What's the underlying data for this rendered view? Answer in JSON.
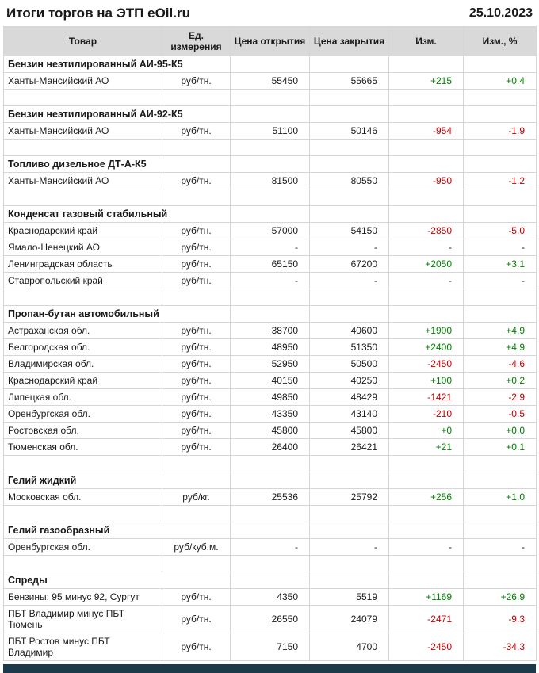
{
  "header": {
    "title": "Итоги торгов на ЭТП eOil.ru",
    "date": "25.10.2023"
  },
  "table": {
    "columns": [
      "Товар",
      "Ед. измерения",
      "Цена открытия",
      "Цена закрытия",
      "Изм.",
      "Изм., %"
    ],
    "sections": [
      {
        "name": "Бензин неэтилированный АИ-95-К5",
        "rows": [
          {
            "region": "Ханты-Мансийский АО",
            "unit": "руб/тн.",
            "open": "55450",
            "close": "55665",
            "change": "+215",
            "change_pct": "+0.4",
            "trend": "up"
          }
        ]
      },
      {
        "name": "Бензин неэтилированный АИ-92-К5",
        "rows": [
          {
            "region": "Ханты-Мансийский АО",
            "unit": "руб/тн.",
            "open": "51100",
            "close": "50146",
            "change": "-954",
            "change_pct": "-1.9",
            "trend": "down"
          }
        ]
      },
      {
        "name": "Топливо дизельное ДТ-А-К5",
        "rows": [
          {
            "region": "Ханты-Мансийский АО",
            "unit": "руб/тн.",
            "open": "81500",
            "close": "80550",
            "change": "-950",
            "change_pct": "-1.2",
            "trend": "down"
          }
        ]
      },
      {
        "name": "Конденсат газовый стабильный",
        "rows": [
          {
            "region": "Краснодарский край",
            "unit": "руб/тн.",
            "open": "57000",
            "close": "54150",
            "change": "-2850",
            "change_pct": "-5.0",
            "trend": "down"
          },
          {
            "region": "Ямало-Ненецкий АО",
            "unit": "руб/тн.",
            "open": "-",
            "close": "-",
            "change": "-",
            "change_pct": "-",
            "trend": ""
          },
          {
            "region": "Ленинградская область",
            "unit": "руб/тн.",
            "open": "65150",
            "close": "67200",
            "change": "+2050",
            "change_pct": "+3.1",
            "trend": "up"
          },
          {
            "region": "Ставропольский край",
            "unit": "руб/тн.",
            "open": "-",
            "close": "-",
            "change": "-",
            "change_pct": "-",
            "trend": ""
          }
        ]
      },
      {
        "name": "Пропан-бутан автомобильный",
        "rows": [
          {
            "region": "Астраханская обл.",
            "unit": "руб/тн.",
            "open": "38700",
            "close": "40600",
            "change": "+1900",
            "change_pct": "+4.9",
            "trend": "up"
          },
          {
            "region": "Белгородская обл.",
            "unit": "руб/тн.",
            "open": "48950",
            "close": "51350",
            "change": "+2400",
            "change_pct": "+4.9",
            "trend": "up"
          },
          {
            "region": "Владимирская обл.",
            "unit": "руб/тн.",
            "open": "52950",
            "close": "50500",
            "change": "-2450",
            "change_pct": "-4.6",
            "trend": "down"
          },
          {
            "region": "Краснодарский край",
            "unit": "руб/тн.",
            "open": "40150",
            "close": "40250",
            "change": "+100",
            "change_pct": "+0.2",
            "trend": "up"
          },
          {
            "region": "Липецкая обл.",
            "unit": "руб/тн.",
            "open": "49850",
            "close": "48429",
            "change": "-1421",
            "change_pct": "-2.9",
            "trend": "down"
          },
          {
            "region": "Оренбургская обл.",
            "unit": "руб/тн.",
            "open": "43350",
            "close": "43140",
            "change": "-210",
            "change_pct": "-0.5",
            "trend": "down"
          },
          {
            "region": "Ростовская обл.",
            "unit": "руб/тн.",
            "open": "45800",
            "close": "45800",
            "change": "+0",
            "change_pct": "+0.0",
            "trend": "up"
          },
          {
            "region": "Тюменская обл.",
            "unit": "руб/тн.",
            "open": "26400",
            "close": "26421",
            "change": "+21",
            "change_pct": "+0.1",
            "trend": "up"
          }
        ]
      },
      {
        "name": "Гелий жидкий",
        "rows": [
          {
            "region": "Московская обл.",
            "unit": "руб/кг.",
            "open": "25536",
            "close": "25792",
            "change": "+256",
            "change_pct": "+1.0",
            "trend": "up"
          }
        ]
      },
      {
        "name": "Гелий газообразный",
        "rows": [
          {
            "region": "Оренбургская обл.",
            "unit": "руб/куб.м.",
            "open": "-",
            "close": "-",
            "change": "-",
            "change_pct": "-",
            "trend": ""
          }
        ]
      },
      {
        "name": "Спреды",
        "rows": [
          {
            "region": "Бензины: 95 минус 92, Сургут",
            "unit": "руб/тн.",
            "open": "4350",
            "close": "5519",
            "change": "+1169",
            "change_pct": "+26.9",
            "trend": "up"
          },
          {
            "region": "ПБТ Владимир минус ПБТ Тюмень",
            "unit": "руб/тн.",
            "open": "26550",
            "close": "24079",
            "change": "-2471",
            "change_pct": "-9.3",
            "trend": "down"
          },
          {
            "region": "ПБТ Ростов минус ПБТ Владимир",
            "unit": "руб/тн.",
            "open": "7150",
            "close": "4700",
            "change": "-2450",
            "change_pct": "-34.3",
            "trend": "down"
          }
        ]
      }
    ]
  },
  "colors": {
    "positive_change": "#008000",
    "negative_change": "#c00000",
    "header_background": "#d9d9d9",
    "table_border": "#d6d6d6",
    "footer_bar": "#1d3a4a"
  }
}
